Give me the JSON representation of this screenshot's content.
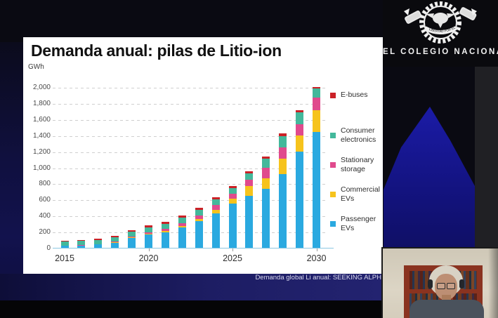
{
  "logo": {
    "title": "EL COLEGIO NACIONAL",
    "motto": "LIBERTAD POR EL SABER"
  },
  "slide": {
    "title": "Demanda anual: pilas de Litio-ion",
    "unit_label": "GWh",
    "source_text": "Demanda global Li anual: SEEKING ALPH"
  },
  "chart_data": {
    "type": "bar",
    "stacked": true,
    "title": "Demanda anual: pilas de Litio-ion",
    "ylabel": "GWh",
    "xlabel": "",
    "ylim": [
      0,
      2000
    ],
    "ytick_step": 200,
    "yticks": [
      "0",
      "200",
      "400",
      "600",
      "800",
      "1,000",
      "1,200",
      "1,400",
      "1,600",
      "1,800",
      "2,000"
    ],
    "grid": "dashed-horizontal",
    "legend_position": "right",
    "x": [
      2015,
      2016,
      2017,
      2018,
      2019,
      2020,
      2021,
      2022,
      2023,
      2024,
      2025,
      2026,
      2027,
      2028,
      2029,
      2030
    ],
    "x_axis_labels": [
      2015,
      2020,
      2025,
      2030
    ],
    "series": [
      {
        "name": "Passenger EVs",
        "color": "#2aa9e0",
        "values": [
          25,
          30,
          42,
          65,
          120,
          165,
          195,
          255,
          330,
          430,
          550,
          650,
          730,
          915,
          1200,
          1440
        ]
      },
      {
        "name": "Commercial EVs",
        "color": "#f6c31c",
        "values": [
          0,
          0,
          2,
          4,
          8,
          10,
          13,
          18,
          28,
          45,
          62,
          115,
          135,
          195,
          195,
          275
        ]
      },
      {
        "name": "Stationary storage",
        "color": "#e04a8d",
        "values": [
          0,
          2,
          3,
          6,
          14,
          20,
          25,
          35,
          45,
          55,
          62,
          85,
          130,
          140,
          145,
          150
        ]
      },
      {
        "name": "Consumer electronics",
        "color": "#43b89b",
        "values": [
          50,
          52,
          52,
          55,
          58,
          62,
          64,
          67,
          68,
          70,
          72,
          76,
          115,
          140,
          150,
          115
        ]
      },
      {
        "name": "E-buses",
        "color": "#cb2127",
        "values": [
          15,
          16,
          16,
          18,
          20,
          22,
          23,
          25,
          25,
          26,
          26,
          26,
          28,
          30,
          25,
          20
        ]
      }
    ],
    "legend": [
      {
        "label": "E-buses",
        "color": "#cb2127"
      },
      {
        "label": "Consumer electronics",
        "color": "#43b89b"
      },
      {
        "label": "Stationary storage",
        "color": "#e04a8d"
      },
      {
        "label": "Commercial EVs",
        "color": "#f6c31c"
      },
      {
        "label": "Passenger EVs",
        "color": "#2aa9e0"
      }
    ]
  }
}
